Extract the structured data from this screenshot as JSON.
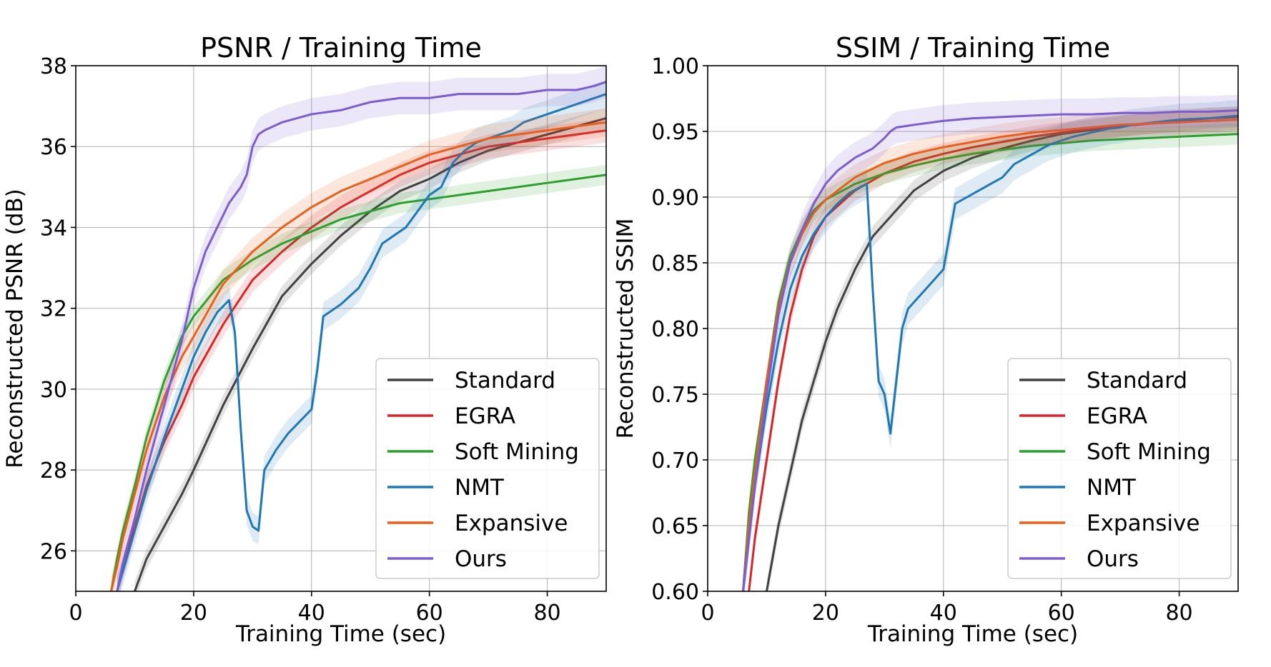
{
  "chart_data": [
    {
      "type": "line",
      "title": "PSNR / Training Time",
      "xlabel": "Training Time (sec)",
      "ylabel": "Reconstructed PSNR (dB)",
      "xlim": [
        0,
        90
      ],
      "ylim": [
        25,
        38
      ],
      "xticks": [
        "0",
        "20",
        "40",
        "60",
        "80"
      ],
      "yticks": [
        "26",
        "28",
        "30",
        "32",
        "34",
        "36",
        "38"
      ],
      "grid": true,
      "legend_position": "lower-right",
      "series": [
        {
          "name": "Standard",
          "color": "#404040",
          "band": 0.25,
          "x": [
            10,
            12,
            15,
            18,
            20,
            25,
            30,
            35,
            40,
            45,
            50,
            55,
            60,
            65,
            70,
            75,
            80,
            85,
            90
          ],
          "y": [
            25.0,
            25.8,
            26.6,
            27.4,
            28.0,
            29.6,
            31.0,
            32.3,
            33.1,
            33.8,
            34.4,
            34.9,
            35.2,
            35.6,
            35.9,
            36.1,
            36.3,
            36.5,
            36.7
          ]
        },
        {
          "name": "EGRA",
          "color": "#d62728",
          "band": 0.3,
          "x": [
            7,
            8,
            10,
            12,
            15,
            18,
            20,
            25,
            30,
            35,
            40,
            45,
            50,
            55,
            60,
            65,
            70,
            75,
            80,
            85,
            90
          ],
          "y": [
            25.0,
            25.6,
            26.6,
            27.6,
            28.7,
            29.6,
            30.3,
            31.6,
            32.7,
            33.4,
            34.0,
            34.5,
            34.9,
            35.3,
            35.6,
            35.8,
            36.0,
            36.1,
            36.2,
            36.3,
            36.4
          ]
        },
        {
          "name": "Soft Mining",
          "color": "#2ca02c",
          "band": 0.25,
          "x": [
            6,
            7,
            8,
            10,
            12,
            15,
            18,
            20,
            25,
            30,
            35,
            40,
            45,
            50,
            55,
            60,
            65,
            70,
            75,
            80,
            85,
            90
          ],
          "y": [
            25.0,
            25.8,
            26.5,
            27.6,
            28.8,
            30.2,
            31.3,
            31.8,
            32.7,
            33.2,
            33.6,
            33.9,
            34.2,
            34.4,
            34.6,
            34.7,
            34.8,
            34.9,
            35.0,
            35.1,
            35.2,
            35.3
          ]
        },
        {
          "name": "NMT",
          "color": "#1f77b4",
          "band": 0.35,
          "x": [
            7,
            8,
            10,
            12,
            15,
            18,
            20,
            22,
            24,
            26,
            27,
            28,
            29,
            30,
            31,
            32,
            34,
            36,
            38,
            40,
            41,
            42,
            45,
            48,
            50,
            52,
            54,
            56,
            58,
            60,
            62,
            64,
            66,
            68,
            70,
            72,
            74,
            76,
            78,
            80,
            82,
            84,
            86,
            88,
            90
          ],
          "y": [
            25.0,
            25.5,
            26.5,
            27.5,
            28.8,
            30.0,
            30.8,
            31.4,
            31.9,
            32.2,
            31.4,
            29.0,
            27.0,
            26.6,
            26.5,
            28.0,
            28.5,
            28.9,
            29.2,
            29.5,
            30.5,
            31.8,
            32.1,
            32.5,
            33.0,
            33.6,
            33.8,
            34.0,
            34.4,
            34.8,
            35.0,
            35.6,
            35.9,
            36.1,
            36.2,
            36.3,
            36.4,
            36.6,
            36.7,
            36.8,
            36.9,
            37.0,
            37.1,
            37.2,
            37.3
          ]
        },
        {
          "name": "Expansive",
          "color": "#e8601c",
          "band": 0.35,
          "x": [
            6,
            7,
            8,
            10,
            12,
            15,
            18,
            20,
            25,
            30,
            35,
            40,
            45,
            50,
            55,
            60,
            65,
            70,
            75,
            80,
            85,
            90
          ],
          "y": [
            25.0,
            25.6,
            26.3,
            27.4,
            28.5,
            29.8,
            30.8,
            31.3,
            32.6,
            33.4,
            34.0,
            34.5,
            34.9,
            35.2,
            35.5,
            35.8,
            36.0,
            36.2,
            36.3,
            36.4,
            36.5,
            36.6
          ]
        },
        {
          "name": "Ours",
          "color": "#7c5ccf",
          "band": 0.4,
          "x": [
            7,
            8,
            10,
            12,
            15,
            18,
            20,
            22,
            24,
            26,
            28,
            29,
            30,
            31,
            32,
            35,
            40,
            45,
            50,
            55,
            60,
            65,
            70,
            75,
            80,
            85,
            88,
            90
          ],
          "y": [
            25.0,
            25.7,
            26.8,
            28.0,
            29.6,
            31.2,
            32.5,
            33.4,
            34.0,
            34.6,
            35.0,
            35.3,
            36.0,
            36.3,
            36.4,
            36.6,
            36.8,
            36.9,
            37.1,
            37.2,
            37.2,
            37.3,
            37.3,
            37.3,
            37.4,
            37.4,
            37.5,
            37.6
          ]
        }
      ]
    },
    {
      "type": "line",
      "title": "SSIM / Training Time",
      "xlabel": "Training Time (sec)",
      "ylabel": "Reconstructed SSIM",
      "xlim": [
        0,
        90
      ],
      "ylim": [
        0.6,
        1.0
      ],
      "xticks": [
        "0",
        "20",
        "40",
        "60",
        "80"
      ],
      "yticks": [
        "0.60",
        "0.65",
        "0.70",
        "0.75",
        "0.80",
        "0.85",
        "0.90",
        "0.95",
        "1.00"
      ],
      "grid": true,
      "legend_position": "lower-right",
      "series": [
        {
          "name": "Standard",
          "color": "#404040",
          "band": 0.008,
          "x": [
            10,
            11,
            12,
            14,
            16,
            18,
            20,
            22,
            25,
            28,
            30,
            35,
            40,
            45,
            50,
            55,
            60,
            65,
            70,
            75,
            80,
            85,
            90
          ],
          "y": [
            0.6,
            0.625,
            0.65,
            0.69,
            0.73,
            0.76,
            0.79,
            0.815,
            0.845,
            0.87,
            0.88,
            0.905,
            0.92,
            0.93,
            0.937,
            0.943,
            0.948,
            0.951,
            0.954,
            0.956,
            0.958,
            0.96,
            0.961
          ]
        },
        {
          "name": "EGRA",
          "color": "#d62728",
          "band": 0.008,
          "x": [
            7,
            8,
            10,
            12,
            14,
            16,
            18,
            20,
            25,
            30,
            35,
            40,
            45,
            50,
            55,
            60,
            65,
            70,
            75,
            80,
            85,
            90
          ],
          "y": [
            0.6,
            0.64,
            0.7,
            0.76,
            0.81,
            0.845,
            0.87,
            0.885,
            0.905,
            0.918,
            0.927,
            0.933,
            0.938,
            0.942,
            0.946,
            0.949,
            0.952,
            0.954,
            0.956,
            0.957,
            0.958,
            0.959
          ]
        },
        {
          "name": "Soft Mining",
          "color": "#2ca02c",
          "band": 0.008,
          "x": [
            6,
            7,
            8,
            10,
            12,
            14,
            16,
            18,
            20,
            25,
            30,
            35,
            40,
            45,
            50,
            55,
            60,
            65,
            70,
            75,
            80,
            85,
            90
          ],
          "y": [
            0.6,
            0.66,
            0.7,
            0.76,
            0.82,
            0.855,
            0.875,
            0.89,
            0.898,
            0.91,
            0.918,
            0.924,
            0.929,
            0.933,
            0.936,
            0.939,
            0.941,
            0.943,
            0.944,
            0.945,
            0.946,
            0.947,
            0.948
          ]
        },
        {
          "name": "NMT",
          "color": "#1f77b4",
          "band": 0.012,
          "x": [
            6,
            7,
            8,
            10,
            12,
            14,
            16,
            18,
            20,
            22,
            24,
            26,
            27,
            28,
            29,
            30,
            31,
            32,
            33,
            34,
            36,
            38,
            40,
            41,
            42,
            44,
            46,
            48,
            50,
            52,
            54,
            56,
            58,
            60,
            62,
            64,
            66,
            68,
            70,
            72,
            74,
            76,
            78,
            80,
            85,
            90
          ],
          "y": [
            0.6,
            0.64,
            0.68,
            0.74,
            0.79,
            0.83,
            0.855,
            0.872,
            0.885,
            0.895,
            0.903,
            0.908,
            0.91,
            0.83,
            0.76,
            0.75,
            0.72,
            0.76,
            0.8,
            0.815,
            0.825,
            0.835,
            0.845,
            0.87,
            0.895,
            0.9,
            0.905,
            0.91,
            0.915,
            0.925,
            0.93,
            0.935,
            0.94,
            0.943,
            0.946,
            0.948,
            0.95,
            0.952,
            0.953,
            0.955,
            0.956,
            0.957,
            0.958,
            0.959,
            0.96,
            0.962
          ]
        },
        {
          "name": "Expansive",
          "color": "#e8601c",
          "band": 0.01,
          "x": [
            6,
            7,
            8,
            10,
            12,
            14,
            16,
            18,
            20,
            25,
            30,
            35,
            40,
            45,
            50,
            55,
            60,
            65,
            70,
            75,
            80,
            85,
            90
          ],
          "y": [
            0.6,
            0.65,
            0.69,
            0.76,
            0.815,
            0.85,
            0.872,
            0.888,
            0.898,
            0.915,
            0.926,
            0.933,
            0.938,
            0.942,
            0.946,
            0.949,
            0.951,
            0.953,
            0.955,
            0.956,
            0.957,
            0.958,
            0.959
          ]
        },
        {
          "name": "Ours",
          "color": "#7c5ccf",
          "band": 0.012,
          "x": [
            6,
            7,
            8,
            10,
            12,
            14,
            16,
            18,
            20,
            22,
            25,
            28,
            30,
            31,
            32,
            35,
            40,
            45,
            50,
            55,
            60,
            65,
            70,
            75,
            80,
            85,
            90
          ],
          "y": [
            0.6,
            0.64,
            0.68,
            0.75,
            0.81,
            0.85,
            0.875,
            0.895,
            0.91,
            0.92,
            0.93,
            0.937,
            0.945,
            0.95,
            0.953,
            0.955,
            0.958,
            0.96,
            0.961,
            0.962,
            0.963,
            0.963,
            0.964,
            0.964,
            0.965,
            0.965,
            0.966
          ]
        }
      ]
    }
  ]
}
